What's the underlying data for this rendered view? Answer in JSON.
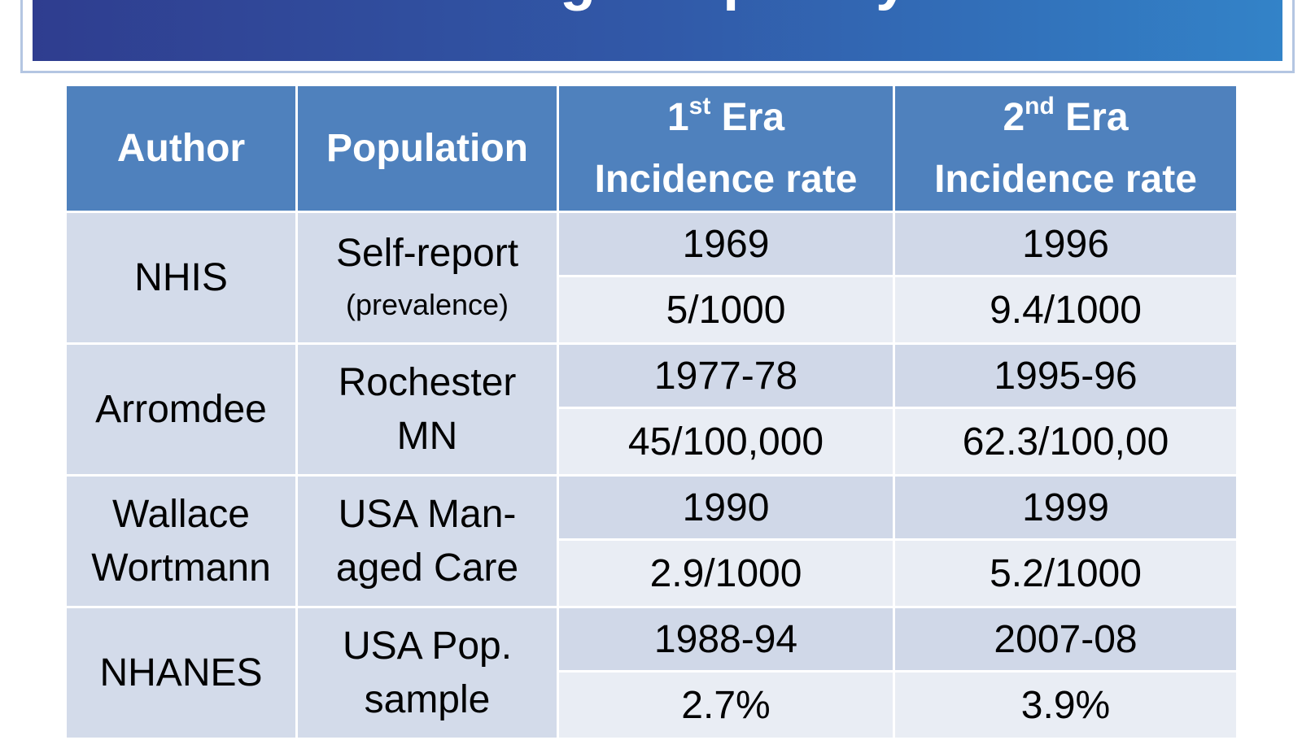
{
  "title": "The Increasing Frequency of Gout",
  "table": {
    "headers": [
      {
        "label": "Author"
      },
      {
        "label": "Population"
      },
      {
        "ordinal": "1",
        "suffix": "st",
        "label": "Era",
        "subtitle": "Incidence rate"
      },
      {
        "ordinal": "2",
        "suffix": "nd",
        "label": "Era",
        "subtitle": "Incidence rate"
      }
    ],
    "rows": [
      {
        "author": [
          "NHIS"
        ],
        "population": [
          "Self-report",
          "(prevalence)"
        ],
        "first_era": {
          "year": "1969",
          "rate": "5/1000"
        },
        "second_era": {
          "year": "1996",
          "rate": "9.4/1000"
        }
      },
      {
        "author": [
          "Arromdee"
        ],
        "population": [
          "Rochester",
          "MN"
        ],
        "first_era": {
          "year": "1977-78",
          "rate": "45/100,000"
        },
        "second_era": {
          "year": "1995-96",
          "rate": "62.3/100,00"
        }
      },
      {
        "author": [
          "Wallace",
          "Wortmann"
        ],
        "population": [
          "USA Man-",
          "aged Care"
        ],
        "first_era": {
          "year": "1990",
          "rate": "2.9/1000"
        },
        "second_era": {
          "year": "1999",
          "rate": "5.2/1000"
        }
      },
      {
        "author": [
          "NHANES"
        ],
        "population": [
          "USA Pop.",
          "sample"
        ],
        "first_era": {
          "year": "1988-94",
          "rate": "2.7%"
        },
        "second_era": {
          "year": "2007-08",
          "rate": "3.9%"
        }
      }
    ]
  }
}
